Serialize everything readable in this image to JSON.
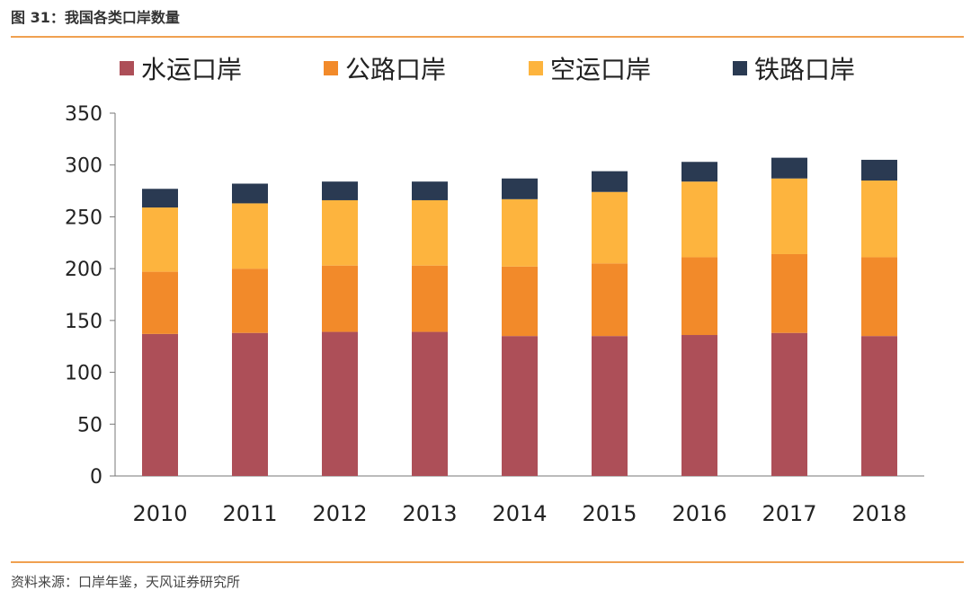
{
  "figure": {
    "title": "图 31：我国各类口岸数量",
    "source": "资料来源：口岸年鉴，天风证券研究所"
  },
  "chart_data": {
    "type": "bar",
    "stacked": true,
    "categories": [
      "2010",
      "2011",
      "2012",
      "2013",
      "2014",
      "2015",
      "2016",
      "2017",
      "2018"
    ],
    "series": [
      {
        "name": "水运口岸",
        "color": "#ad4f58",
        "values": [
          137,
          138,
          139,
          139,
          135,
          135,
          136,
          138,
          135
        ]
      },
      {
        "name": "公路口岸",
        "color": "#f28a2a",
        "values": [
          60,
          62,
          64,
          64,
          67,
          70,
          75,
          76,
          76
        ]
      },
      {
        "name": "空运口岸",
        "color": "#fdb43e",
        "values": [
          62,
          63,
          63,
          63,
          65,
          69,
          73,
          73,
          74
        ]
      },
      {
        "name": "铁路口岸",
        "color": "#2a3a52",
        "values": [
          18,
          19,
          18,
          18,
          20,
          20,
          19,
          20,
          20
        ]
      }
    ],
    "ylim": [
      0,
      350
    ],
    "yticks": [
      0,
      50,
      100,
      150,
      200,
      250,
      300,
      350
    ],
    "legend_position": "top",
    "grid": false
  }
}
